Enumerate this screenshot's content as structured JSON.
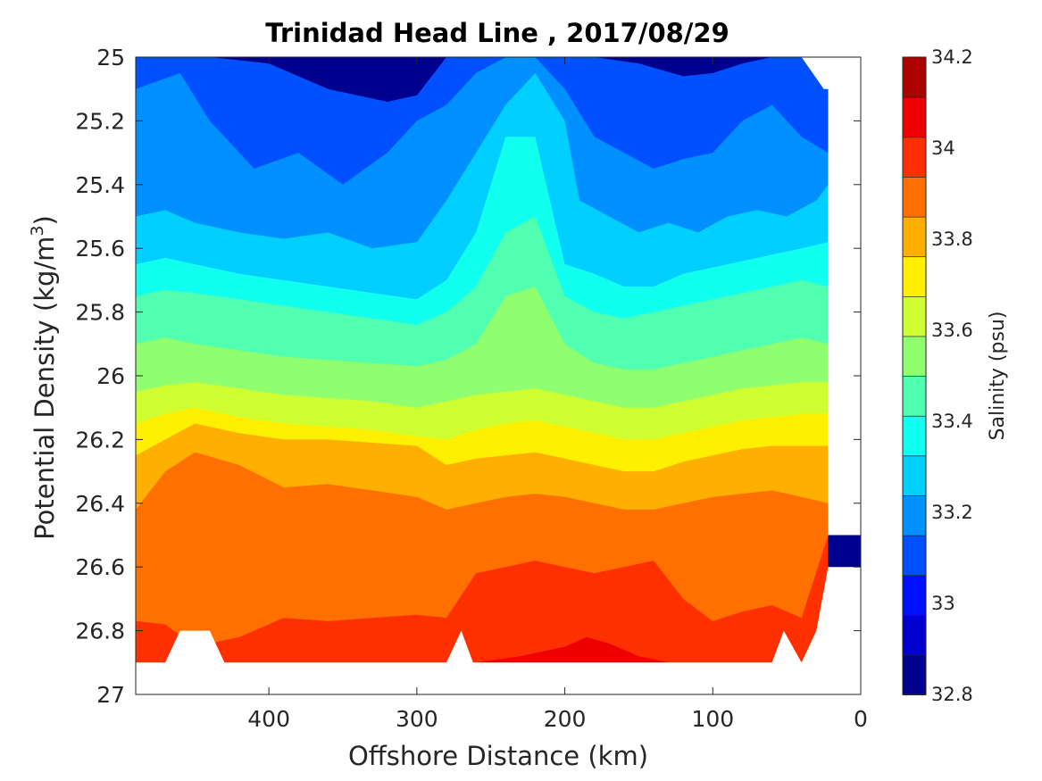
{
  "chart_data": {
    "type": "filled-contour",
    "title": "Trinidad Head Line , 2017/08/29",
    "xlabel": "Offshore Distance (km)",
    "ylabel_main": "Potential Density (kg/m",
    "ylabel_sup": "3",
    "ylabel_close": ")",
    "colorbar_label": "Salinity (psu)",
    "x_axis": {
      "range": [
        490,
        0
      ],
      "reversed": true,
      "ticks": [
        400,
        300,
        200,
        100,
        0
      ],
      "tick_labels": [
        "400",
        "300",
        "200",
        "100",
        "0"
      ]
    },
    "y_axis": {
      "range": [
        25,
        27
      ],
      "reversed": true,
      "ticks": [
        25,
        25.2,
        25.4,
        25.6,
        25.8,
        26,
        26.2,
        26.4,
        26.6,
        26.8,
        27
      ],
      "tick_labels": [
        "25",
        "25.2",
        "25.4",
        "25.6",
        "25.8",
        "26",
        "26.2",
        "26.4",
        "26.6",
        "26.8",
        "27"
      ]
    },
    "colorbar": {
      "range": [
        32.8,
        34.2
      ],
      "levels": [
        32.8,
        32.9,
        33.0,
        33.1,
        33.2,
        33.3,
        33.4,
        33.5,
        33.6,
        33.7,
        33.8,
        33.9,
        34.0,
        34.1,
        34.2
      ],
      "colors": [
        "#00008F",
        "#0000CF",
        "#0010FF",
        "#0050FF",
        "#0090FF",
        "#00CFFF",
        "#10FFEF",
        "#50FFAF",
        "#8FFF70",
        "#CFFF30",
        "#FFEF00",
        "#FFAF00",
        "#FF7000",
        "#FF3000",
        "#EF0000",
        "#AF0000"
      ],
      "tick_values": [
        32.8,
        33.0,
        33.2,
        33.4,
        33.6,
        33.8,
        34.0,
        34.2
      ],
      "tick_labels": [
        "32.8",
        "33",
        "33.2",
        "33.4",
        "33.6",
        "33.8",
        "34",
        "34.2"
      ]
    },
    "contour_boundaries": [
      {
        "level": 33.0,
        "x": [
          490,
          440,
          400,
          360,
          320,
          300,
          280,
          250,
          230,
          200,
          180,
          150,
          120,
          100,
          80,
          60,
          40,
          30,
          22
        ],
        "y": [
          25.0,
          25.0,
          25.02,
          25.1,
          25.14,
          25.12,
          25.0,
          25.0,
          25.0,
          25.0,
          25.0,
          25.02,
          25.06,
          25.05,
          25.02,
          25.0,
          25.0,
          25.04,
          25.1
        ]
      },
      {
        "level": 33.1,
        "x": [
          490,
          460,
          440,
          410,
          380,
          350,
          320,
          300,
          280,
          260,
          240,
          220,
          200,
          180,
          160,
          140,
          120,
          100,
          80,
          60,
          40,
          22
        ],
        "y": [
          25.1,
          25.05,
          25.2,
          25.35,
          25.3,
          25.4,
          25.3,
          25.2,
          25.15,
          25.05,
          25.0,
          25.0,
          25.1,
          25.25,
          25.3,
          25.35,
          25.32,
          25.3,
          25.2,
          25.15,
          25.25,
          25.3
        ]
      },
      {
        "level": 33.2,
        "x": [
          490,
          470,
          450,
          420,
          390,
          360,
          330,
          300,
          280,
          260,
          240,
          220,
          200,
          190,
          170,
          150,
          130,
          110,
          90,
          70,
          50,
          30,
          22
        ],
        "y": [
          25.5,
          25.48,
          25.52,
          25.55,
          25.57,
          25.55,
          25.6,
          25.58,
          25.45,
          25.3,
          25.15,
          25.05,
          25.2,
          25.45,
          25.5,
          25.55,
          25.52,
          25.55,
          25.5,
          25.48,
          25.5,
          25.45,
          25.4
        ]
      },
      {
        "level": 33.3,
        "x": [
          490,
          470,
          450,
          420,
          390,
          360,
          330,
          300,
          280,
          260,
          240,
          220,
          200,
          180,
          160,
          140,
          120,
          100,
          80,
          60,
          40,
          22
        ],
        "y": [
          25.65,
          25.63,
          25.65,
          25.68,
          25.7,
          25.72,
          25.74,
          25.76,
          25.7,
          25.55,
          25.25,
          25.25,
          25.65,
          25.68,
          25.72,
          25.72,
          25.68,
          25.66,
          25.64,
          25.62,
          25.6,
          25.58
        ]
      },
      {
        "level": 33.4,
        "x": [
          490,
          470,
          450,
          420,
          390,
          360,
          330,
          300,
          280,
          260,
          240,
          220,
          200,
          180,
          160,
          140,
          120,
          100,
          80,
          60,
          40,
          22
        ],
        "y": [
          25.75,
          25.73,
          25.74,
          25.76,
          25.78,
          25.8,
          25.82,
          25.84,
          25.8,
          25.72,
          25.55,
          25.5,
          25.75,
          25.8,
          25.82,
          25.8,
          25.78,
          25.76,
          25.74,
          25.72,
          25.7,
          25.72
        ]
      },
      {
        "level": 33.5,
        "x": [
          490,
          470,
          450,
          420,
          390,
          360,
          330,
          300,
          280,
          260,
          240,
          220,
          200,
          180,
          160,
          140,
          120,
          100,
          80,
          60,
          40,
          22
        ],
        "y": [
          25.9,
          25.88,
          25.9,
          25.92,
          25.94,
          25.95,
          25.96,
          25.97,
          25.95,
          25.9,
          25.75,
          25.72,
          25.9,
          25.96,
          25.98,
          25.98,
          25.96,
          25.94,
          25.92,
          25.9,
          25.88,
          25.9
        ]
      },
      {
        "level": 33.6,
        "x": [
          490,
          470,
          450,
          420,
          390,
          360,
          330,
          300,
          280,
          260,
          240,
          220,
          200,
          180,
          160,
          140,
          120,
          100,
          80,
          60,
          40,
          22
        ],
        "y": [
          26.05,
          26.03,
          26.02,
          26.04,
          26.06,
          26.07,
          26.08,
          26.1,
          26.08,
          26.06,
          26.05,
          26.04,
          26.06,
          26.08,
          26.1,
          26.1,
          26.08,
          26.06,
          26.04,
          26.03,
          26.02,
          26.02
        ]
      },
      {
        "level": 33.7,
        "x": [
          490,
          470,
          450,
          420,
          390,
          360,
          330,
          300,
          280,
          260,
          240,
          220,
          200,
          180,
          160,
          140,
          120,
          100,
          80,
          60,
          40,
          22
        ],
        "y": [
          26.15,
          26.12,
          26.1,
          26.13,
          26.15,
          26.16,
          26.17,
          26.19,
          26.2,
          26.17,
          26.15,
          26.14,
          26.16,
          26.18,
          26.2,
          26.2,
          26.18,
          26.16,
          26.14,
          26.13,
          26.12,
          26.12
        ]
      },
      {
        "level": 33.8,
        "x": [
          490,
          470,
          450,
          420,
          390,
          360,
          330,
          300,
          280,
          260,
          240,
          220,
          200,
          180,
          160,
          140,
          120,
          100,
          80,
          60,
          40,
          22
        ],
        "y": [
          26.25,
          26.2,
          26.15,
          26.18,
          26.2,
          26.2,
          26.21,
          26.22,
          26.28,
          26.26,
          26.25,
          26.24,
          26.26,
          26.28,
          26.3,
          26.3,
          26.27,
          26.25,
          26.23,
          26.22,
          26.22,
          26.22
        ]
      },
      {
        "level": 33.9,
        "x": [
          490,
          470,
          450,
          420,
          390,
          360,
          330,
          300,
          280,
          260,
          240,
          220,
          200,
          180,
          160,
          140,
          120,
          100,
          80,
          60,
          40,
          22
        ],
        "y": [
          26.42,
          26.3,
          26.24,
          26.28,
          26.35,
          26.34,
          26.36,
          26.38,
          26.42,
          26.4,
          26.38,
          26.37,
          26.38,
          26.4,
          26.42,
          26.42,
          26.4,
          26.38,
          26.37,
          26.36,
          26.38,
          26.4
        ]
      },
      {
        "level": 34.0,
        "x": [
          490,
          470,
          450,
          420,
          390,
          360,
          330,
          300,
          280,
          260,
          240,
          220,
          200,
          180,
          160,
          140,
          120,
          100,
          80,
          60,
          40,
          22
        ],
        "y": [
          26.77,
          26.78,
          26.85,
          26.82,
          26.76,
          26.77,
          26.76,
          26.75,
          26.76,
          26.62,
          26.6,
          26.58,
          26.6,
          26.62,
          26.6,
          26.58,
          26.7,
          26.77,
          26.74,
          26.72,
          26.76,
          26.5
        ]
      },
      {
        "level": 34.1,
        "x": [
          260,
          230,
          200,
          185,
          170,
          150,
          130
        ],
        "y": [
          26.9,
          26.88,
          26.85,
          26.82,
          26.84,
          26.88,
          26.9
        ]
      }
    ],
    "data_bottom": {
      "x": [
        490,
        470,
        460,
        440,
        430,
        280,
        270,
        262,
        60,
        52,
        40,
        30,
        22
      ],
      "y": [
        26.9,
        26.9,
        26.8,
        26.8,
        26.9,
        26.9,
        26.8,
        26.9,
        26.9,
        26.8,
        26.9,
        26.8,
        26.6
      ]
    },
    "data_right_edge": {
      "x": [
        22,
        22,
        25,
        40
      ],
      "y": [
        26.5,
        25.1,
        25.1,
        25.0
      ]
    }
  }
}
